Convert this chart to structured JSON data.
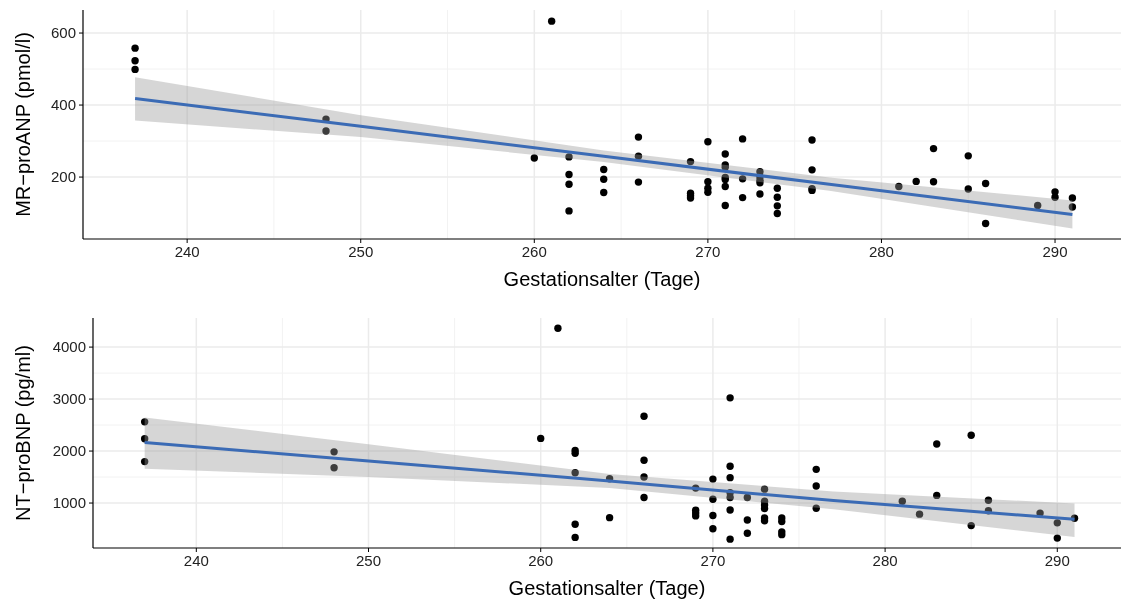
{
  "chart_data": [
    {
      "type": "scatter",
      "xlabel": "Gestationsalter (Tage)",
      "ylabel": "MR−proANP (pmol/l)",
      "xlim": [
        234.0,
        293.8
      ],
      "ylim": [
        28,
        664
      ],
      "xticks": [
        240,
        250,
        260,
        270,
        280,
        290
      ],
      "yticks": [
        200,
        400,
        600
      ],
      "grid": true,
      "marker": "circle",
      "series": [
        {
          "color": "#000000",
          "x": [
            237,
            237,
            237,
            248,
            248,
            260,
            261,
            262,
            262,
            262,
            262,
            264,
            264,
            264,
            266,
            266,
            266,
            269,
            269,
            269,
            269,
            270,
            270,
            270,
            270,
            271,
            271,
            271,
            271,
            271,
            271,
            271,
            272,
            272,
            272,
            273,
            273,
            273,
            273,
            273,
            274,
            274,
            274,
            274,
            276,
            276,
            276,
            276,
            281,
            282,
            283,
            283,
            285,
            285,
            286,
            286,
            289,
            290,
            290,
            291,
            291
          ],
          "values": [
            558,
            523,
            499,
            361,
            328,
            253,
            633,
            256,
            207,
            180,
            106,
            221,
            194,
            157,
            311,
            258,
            186,
            243,
            155,
            148,
            142,
            298,
            187,
            169,
            158,
            264,
            234,
            227,
            199,
            193,
            174,
            121,
            306,
            195,
            143,
            215,
            201,
            191,
            184,
            153,
            169,
            144,
            120,
            99,
            303,
            220,
            168,
            163,
            174,
            188,
            279,
            187,
            259,
            167,
            182,
            71,
            121,
            159,
            144,
            142,
            117
          ]
        },
        {
          "type": "line",
          "color": "#3b6bb5",
          "marker": "none",
          "line_style": "solid",
          "x": [
            237,
            250,
            264,
            277,
            291
          ],
          "values": [
            418,
            341,
            258,
            180,
            96
          ],
          "lower": [
            357,
            311,
            242,
            162,
            57
          ],
          "upper": [
            477,
            372,
            274,
            199,
            135
          ]
        }
      ]
    },
    {
      "type": "scatter",
      "xlabel": "Gestationsalter (Tage)",
      "ylabel": "NT−proBNP (pg/ml)",
      "xlim": [
        234.0,
        293.7
      ],
      "ylim": [
        135,
        4560
      ],
      "xticks": [
        240,
        250,
        260,
        270,
        280,
        290
      ],
      "yticks": [
        1000,
        2000,
        3000,
        4000
      ],
      "grid": true,
      "marker": "circle",
      "series": [
        {
          "color": "#000000",
          "x": [
            237,
            237,
            237,
            248,
            248,
            260,
            261,
            262,
            262,
            262,
            262,
            262,
            264,
            264,
            266,
            266,
            266,
            266,
            269,
            269,
            269,
            269,
            270,
            270,
            270,
            270,
            271,
            271,
            271,
            271,
            271,
            271,
            271,
            272,
            272,
            272,
            273,
            273,
            273,
            273,
            273,
            273,
            274,
            274,
            274,
            274,
            276,
            276,
            276,
            281,
            282,
            283,
            283,
            285,
            285,
            286,
            286,
            289,
            290,
            290,
            291
          ],
          "values": [
            2562,
            2238,
            1797,
            1985,
            1680,
            2244,
            4363,
            2011,
            1959,
            1583,
            592,
            339,
            1468,
            719,
            2670,
            1822,
            1501,
            1107,
            1287,
            860,
            806,
            753,
            1461,
            1073,
            760,
            506,
            3024,
            1708,
            1488,
            1200,
            1107,
            866,
            305,
            1107,
            673,
            419,
            1267,
            1033,
            960,
            893,
            713,
            659,
            713,
            646,
            446,
            392,
            1648,
            1327,
            900,
            1033,
            786,
            2136,
            1147,
            2303,
            566,
            1053,
            853,
            806,
            619,
            325,
            706
          ]
        },
        {
          "type": "line",
          "color": "#3b6bb5",
          "marker": "none",
          "line_style": "solid",
          "x": [
            237,
            250,
            264,
            277,
            291
          ],
          "values": [
            2165,
            1809,
            1425,
            1050,
            686
          ],
          "lower": [
            1661,
            1500,
            1290,
            880,
            345
          ],
          "upper": [
            2646,
            2130,
            1560,
            1220,
            993
          ]
        }
      ]
    }
  ]
}
